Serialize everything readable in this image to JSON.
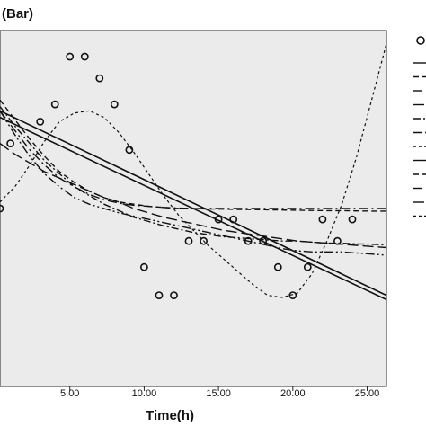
{
  "chart_data": {
    "type": "scatter",
    "title": "",
    "unit_label": "(Bar)",
    "xlabel": "Time(h)",
    "ylabel": "",
    "xlim": [
      0.3,
      26.3
    ],
    "ylim": [
      3.78,
      5.42
    ],
    "x_ticks": [
      5,
      10,
      15,
      20,
      25
    ],
    "x_tick_labels": [
      "5.00",
      "10.00",
      "15.00",
      "20.00",
      "25.00"
    ],
    "grid": false,
    "legend": "right (partially cropped)",
    "colors": {
      "plot_background": "#ebebeb",
      "marks": "#111111"
    },
    "points": [
      {
        "x": 0.3,
        "y": 4.6
      },
      {
        "x": 1,
        "y": 4.9
      },
      {
        "x": 3,
        "y": 5.0
      },
      {
        "x": 4,
        "y": 5.08
      },
      {
        "x": 5,
        "y": 5.3
      },
      {
        "x": 6,
        "y": 5.3
      },
      {
        "x": 7,
        "y": 5.2
      },
      {
        "x": 8,
        "y": 5.08
      },
      {
        "x": 9,
        "y": 4.87
      },
      {
        "x": 10,
        "y": 4.33
      },
      {
        "x": 11,
        "y": 4.2
      },
      {
        "x": 12,
        "y": 4.2
      },
      {
        "x": 13,
        "y": 4.45
      },
      {
        "x": 14,
        "y": 4.45
      },
      {
        "x": 15,
        "y": 4.55
      },
      {
        "x": 16,
        "y": 4.55
      },
      {
        "x": 17,
        "y": 4.45
      },
      {
        "x": 18,
        "y": 4.45
      },
      {
        "x": 19,
        "y": 4.33
      },
      {
        "x": 20,
        "y": 4.2
      },
      {
        "x": 21,
        "y": 4.33
      },
      {
        "x": 22,
        "y": 4.55
      },
      {
        "x": 23,
        "y": 4.45
      },
      {
        "x": 24,
        "y": 4.55
      }
    ],
    "fit_curves": [
      {
        "dash": "solid",
        "width": 1.6,
        "points": [
          [
            0.3,
            5.02
          ],
          [
            26.3,
            4.18
          ]
        ]
      },
      {
        "dash": "solid",
        "width": 1.6,
        "points": [
          [
            0.3,
            5.05
          ],
          [
            26.3,
            4.2
          ]
        ]
      },
      {
        "dash": "6,4",
        "width": 1.4,
        "points": [
          [
            0.3,
            5.1
          ],
          [
            1.3,
            5.01
          ],
          [
            2.3,
            4.92
          ],
          [
            3.3,
            4.84
          ],
          [
            4.3,
            4.77
          ],
          [
            5.3,
            4.72
          ],
          [
            6.3,
            4.68
          ],
          [
            7.3,
            4.65
          ],
          [
            8.3,
            4.63
          ],
          [
            9.3,
            4.62
          ],
          [
            10.3,
            4.61
          ],
          [
            11.3,
            4.605
          ],
          [
            12.3,
            4.6
          ],
          [
            13.3,
            4.6
          ],
          [
            14.3,
            4.598
          ],
          [
            15.3,
            4.597
          ],
          [
            16.3,
            4.596
          ],
          [
            17.3,
            4.595
          ],
          [
            18.3,
            4.594
          ],
          [
            19.3,
            4.593
          ],
          [
            20.3,
            4.592
          ],
          [
            21.3,
            4.591
          ],
          [
            22.3,
            4.59
          ],
          [
            23.3,
            4.59
          ],
          [
            24.3,
            4.589
          ],
          [
            25.3,
            4.588
          ],
          [
            26.3,
            4.588
          ]
        ]
      },
      {
        "dash": "10,4,2,4",
        "width": 1.4,
        "points": [
          [
            0.3,
            5.05
          ],
          [
            1.3,
            4.96
          ],
          [
            2.3,
            4.87
          ],
          [
            3.3,
            4.8
          ],
          [
            4.3,
            4.74
          ],
          [
            5.3,
            4.7
          ],
          [
            6.3,
            4.665
          ],
          [
            7.3,
            4.64
          ],
          [
            8.3,
            4.625
          ],
          [
            9.3,
            4.615
          ],
          [
            10.3,
            4.61
          ],
          [
            11.3,
            4.605
          ],
          [
            12.3,
            4.602
          ],
          [
            13.3,
            4.6
          ],
          [
            14.3,
            4.6
          ],
          [
            15.3,
            4.6
          ],
          [
            16.3,
            4.6
          ],
          [
            17.3,
            4.6
          ],
          [
            18.3,
            4.6
          ],
          [
            19.3,
            4.6
          ],
          [
            20.3,
            4.6
          ],
          [
            21.3,
            4.6
          ],
          [
            22.3,
            4.6
          ],
          [
            23.3,
            4.6
          ],
          [
            24.3,
            4.6
          ],
          [
            25.3,
            4.6
          ],
          [
            26.3,
            4.6
          ]
        ]
      },
      {
        "dash": "12,5",
        "width": 1.4,
        "points": [
          [
            0.3,
            4.9
          ],
          [
            1.3,
            4.85
          ],
          [
            2.3,
            4.81
          ],
          [
            3.3,
            4.77
          ],
          [
            4.3,
            4.74
          ],
          [
            5.3,
            4.71
          ],
          [
            6.3,
            4.68
          ],
          [
            7.3,
            4.65
          ],
          [
            8.3,
            4.63
          ],
          [
            9.3,
            4.6
          ],
          [
            10.3,
            4.58
          ],
          [
            11.3,
            4.56
          ],
          [
            12.3,
            4.545
          ],
          [
            13.3,
            4.53
          ],
          [
            14.3,
            4.515
          ],
          [
            15.3,
            4.5
          ],
          [
            16.3,
            4.49
          ],
          [
            17.3,
            4.48
          ],
          [
            18.3,
            4.47
          ],
          [
            19.3,
            4.46
          ],
          [
            20.3,
            4.45
          ],
          [
            21.3,
            4.445
          ],
          [
            22.3,
            4.44
          ],
          [
            23.3,
            4.435
          ],
          [
            24.3,
            4.43
          ],
          [
            25.3,
            4.425
          ],
          [
            26.3,
            4.42
          ]
        ]
      },
      {
        "dash": "8,3,2,3",
        "width": 1.4,
        "points": [
          [
            0.3,
            5.07
          ],
          [
            1.3,
            4.98
          ],
          [
            2.3,
            4.9
          ],
          [
            3.3,
            4.82
          ],
          [
            4.3,
            4.76
          ],
          [
            5.3,
            4.7
          ],
          [
            6.3,
            4.66
          ],
          [
            7.3,
            4.62
          ],
          [
            8.3,
            4.59
          ],
          [
            9.3,
            4.56
          ],
          [
            10.3,
            4.54
          ],
          [
            11.3,
            4.52
          ],
          [
            12.3,
            4.505
          ],
          [
            13.3,
            4.49
          ],
          [
            14.3,
            4.48
          ],
          [
            15.3,
            4.47
          ],
          [
            16.3,
            4.465
          ],
          [
            17.3,
            4.46
          ],
          [
            18.3,
            4.455
          ],
          [
            19.3,
            4.45
          ],
          [
            20.3,
            4.45
          ],
          [
            21.3,
            4.445
          ],
          [
            22.3,
            4.44
          ],
          [
            23.3,
            4.44
          ],
          [
            24.3,
            4.437
          ],
          [
            25.3,
            4.435
          ],
          [
            26.3,
            4.432
          ]
        ]
      },
      {
        "dash": "10,3,2,3,2,3",
        "width": 1.4,
        "points": [
          [
            0.3,
            5.05
          ],
          [
            1.3,
            4.94
          ],
          [
            2.3,
            4.84
          ],
          [
            3.3,
            4.76
          ],
          [
            4.3,
            4.7
          ],
          [
            5.3,
            4.65
          ],
          [
            6.3,
            4.62
          ],
          [
            7.3,
            4.6
          ],
          [
            8.3,
            4.58
          ],
          [
            9.3,
            4.565
          ],
          [
            10.3,
            4.55
          ],
          [
            11.3,
            4.535
          ],
          [
            12.3,
            4.52
          ],
          [
            13.3,
            4.505
          ],
          [
            14.3,
            4.49
          ],
          [
            15.3,
            4.475
          ],
          [
            16.3,
            4.46
          ],
          [
            17.3,
            4.445
          ],
          [
            18.3,
            4.43
          ],
          [
            19.3,
            4.415
          ],
          [
            20.3,
            4.405
          ],
          [
            21.3,
            4.4
          ],
          [
            22.3,
            4.4
          ],
          [
            23.3,
            4.4
          ],
          [
            24.3,
            4.395
          ],
          [
            25.3,
            4.39
          ],
          [
            26.3,
            4.385
          ]
        ]
      },
      {
        "dash": "3,3",
        "width": 1.2,
        "points": [
          [
            0.3,
            4.63
          ],
          [
            1.3,
            4.7
          ],
          [
            2.3,
            4.8
          ],
          [
            3.3,
            4.91
          ],
          [
            4.3,
            5.0
          ],
          [
            5.3,
            5.04
          ],
          [
            6.3,
            5.05
          ],
          [
            7.3,
            5.02
          ],
          [
            8.3,
            4.95
          ],
          [
            9.3,
            4.86
          ],
          [
            10.3,
            4.76
          ],
          [
            11.3,
            4.66
          ],
          [
            12.3,
            4.57
          ],
          [
            13.3,
            4.5
          ],
          [
            14.3,
            4.43
          ],
          [
            15.3,
            4.37
          ],
          [
            16.3,
            4.31
          ],
          [
            17.3,
            4.25
          ],
          [
            18.3,
            4.2
          ],
          [
            19.3,
            4.19
          ],
          [
            20.3,
            4.21
          ],
          [
            21.3,
            4.3
          ],
          [
            22.3,
            4.45
          ],
          [
            23.3,
            4.62
          ],
          [
            24.3,
            4.84
          ],
          [
            25.3,
            5.1
          ],
          [
            26.3,
            5.36
          ]
        ]
      }
    ]
  }
}
